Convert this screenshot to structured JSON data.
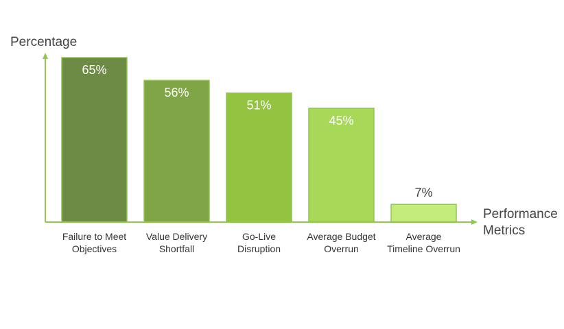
{
  "chart_data": {
    "type": "bar",
    "ylabel": "Percentage",
    "xlabel": "Performance Metrics",
    "categories": [
      "Failure to Meet Objectives",
      "Value Delivery Shortfall",
      "Go-Live Disruption",
      "Average Budget Overrun",
      "Average Timeline Overrun"
    ],
    "category_lines": [
      [
        "Failure to Meet",
        "Objectives"
      ],
      [
        "Value Delivery",
        "Shortfall"
      ],
      [
        "Go-Live",
        "Disruption"
      ],
      [
        "Average Budget",
        "Overrun"
      ],
      [
        "Average",
        "Timeline Overrun"
      ]
    ],
    "values": [
      65,
      56,
      51,
      45,
      7
    ],
    "value_labels": [
      "65%",
      "56%",
      "51%",
      "45%",
      "7%"
    ],
    "ylim": [
      0,
      65
    ],
    "grid": false,
    "bar_colors": [
      "#6e8b45",
      "#80a547",
      "#93c340",
      "#a8d858",
      "#c3ec7c"
    ],
    "bar_stroke": "#8fc84a",
    "axis_color": "#8fc84a",
    "label_inside_color": "#ffffff",
    "label_outside_color": "#444444"
  }
}
